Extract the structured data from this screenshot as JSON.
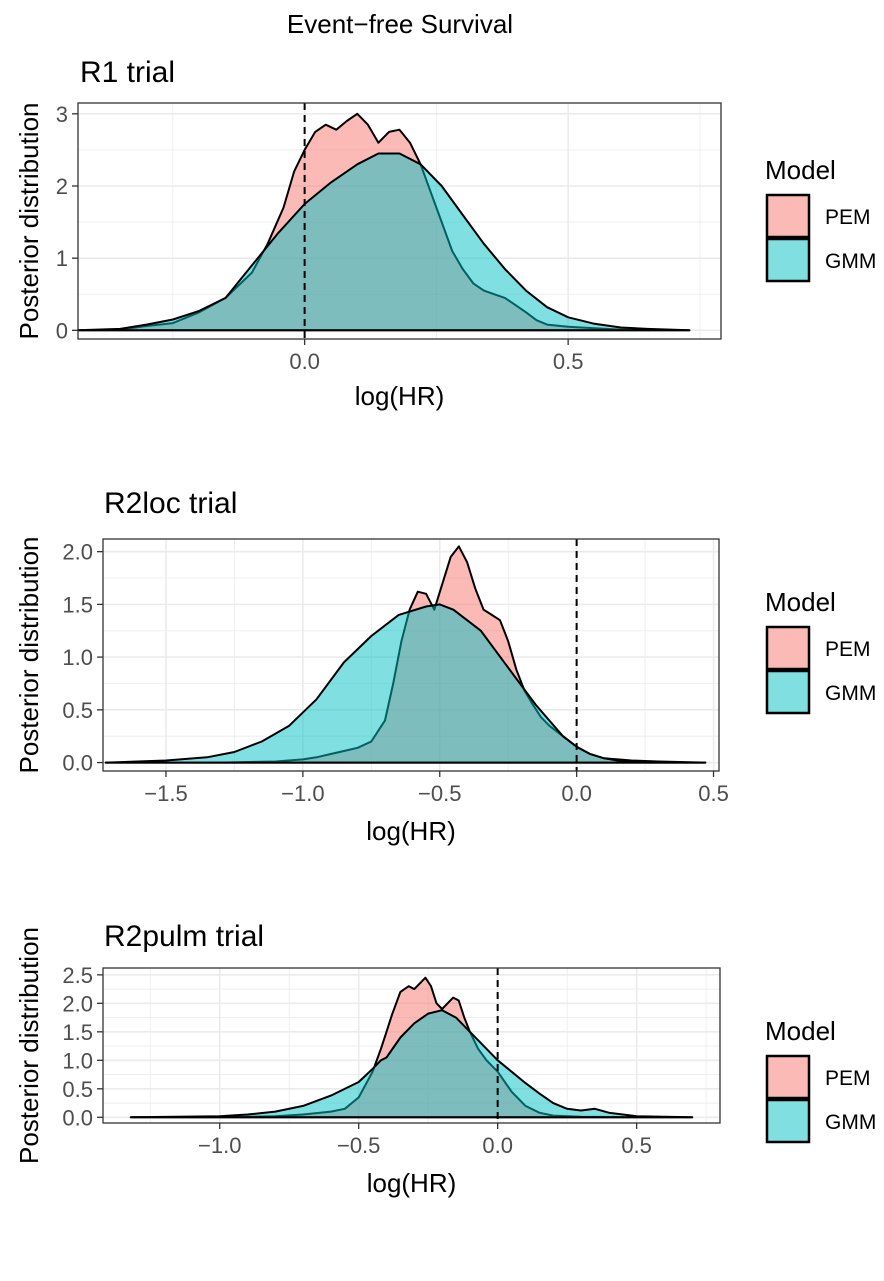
{
  "figure": {
    "title": "Event−free Survival"
  },
  "colors": {
    "pem": "#F8766D",
    "gmm": "#00BFC4",
    "outline": "#000000",
    "grid": "#ebebeb",
    "axis_text": "#4d4d4d"
  },
  "chart_data": [
    {
      "type": "area",
      "title": "R1 trial",
      "xlabel": "log(HR)",
      "ylabel": "Posterior distribution",
      "xlim": [
        -0.43,
        0.79
      ],
      "ylim": [
        -0.12,
        3.15
      ],
      "xticks": [
        0.0,
        0.5
      ],
      "xtick_labels": [
        "0.0",
        "0.5"
      ],
      "yticks": [
        0,
        1,
        2,
        3
      ],
      "ytick_labels": [
        "0",
        "1",
        "2",
        "3"
      ],
      "grid": true,
      "reference_line_x": 0,
      "legend": {
        "title": "Model",
        "position": "right",
        "entries": [
          "PEM",
          "GMM"
        ]
      },
      "series": [
        {
          "name": "PEM",
          "x": [
            -0.43,
            -0.35,
            -0.3,
            -0.25,
            -0.2,
            -0.15,
            -0.1,
            -0.07,
            -0.04,
            -0.02,
            0.0,
            0.02,
            0.04,
            0.06,
            0.08,
            0.1,
            0.12,
            0.14,
            0.16,
            0.18,
            0.2,
            0.22,
            0.24,
            0.26,
            0.28,
            0.3,
            0.32,
            0.34,
            0.36,
            0.38,
            0.4,
            0.42,
            0.44,
            0.46,
            0.5,
            0.55,
            0.6,
            0.65,
            0.73
          ],
          "y": [
            0.0,
            0.01,
            0.06,
            0.1,
            0.25,
            0.45,
            0.8,
            1.2,
            1.7,
            2.2,
            2.5,
            2.75,
            2.85,
            2.78,
            2.9,
            3.0,
            2.85,
            2.6,
            2.75,
            2.78,
            2.6,
            2.3,
            1.9,
            1.5,
            1.1,
            0.85,
            0.65,
            0.55,
            0.5,
            0.45,
            0.35,
            0.25,
            0.14,
            0.08,
            0.05,
            0.03,
            0.01,
            0.01,
            0.0
          ]
        },
        {
          "name": "GMM",
          "x": [
            -0.43,
            -0.35,
            -0.3,
            -0.25,
            -0.2,
            -0.15,
            -0.1,
            -0.05,
            0.0,
            0.05,
            0.1,
            0.14,
            0.18,
            0.22,
            0.26,
            0.3,
            0.34,
            0.38,
            0.42,
            0.46,
            0.5,
            0.55,
            0.6,
            0.65,
            0.73
          ],
          "y": [
            0.0,
            0.02,
            0.08,
            0.15,
            0.27,
            0.45,
            0.9,
            1.35,
            1.75,
            2.05,
            2.3,
            2.45,
            2.45,
            2.3,
            2.0,
            1.6,
            1.2,
            0.85,
            0.55,
            0.32,
            0.18,
            0.09,
            0.04,
            0.02,
            0.0
          ]
        }
      ]
    },
    {
      "type": "area",
      "title": "R2loc trial",
      "xlabel": "log(HR)",
      "ylabel": "Posterior distribution",
      "xlim": [
        -1.73,
        0.52
      ],
      "ylim": [
        -0.08,
        2.12
      ],
      "xticks": [
        -1.5,
        -1.0,
        -0.5,
        0.0,
        0.5
      ],
      "xtick_labels": [
        "−1.5",
        "−1.0",
        "−0.5",
        "0.0",
        "0.5"
      ],
      "yticks": [
        0.0,
        0.5,
        1.0,
        1.5,
        2.0
      ],
      "ytick_labels": [
        "0.0",
        "0.5",
        "1.0",
        "1.5",
        "2.0"
      ],
      "grid": true,
      "reference_line_x": 0,
      "legend": {
        "title": "Model",
        "position": "right",
        "entries": [
          "PEM",
          "GMM"
        ]
      },
      "series": [
        {
          "name": "PEM",
          "x": [
            -1.72,
            -1.3,
            -1.1,
            -1.0,
            -0.95,
            -0.9,
            -0.85,
            -0.8,
            -0.75,
            -0.7,
            -0.67,
            -0.64,
            -0.61,
            -0.58,
            -0.55,
            -0.52,
            -0.49,
            -0.46,
            -0.43,
            -0.4,
            -0.37,
            -0.34,
            -0.31,
            -0.28,
            -0.25,
            -0.22,
            -0.19,
            -0.16,
            -0.13,
            -0.1,
            -0.05,
            0.0,
            0.05,
            0.1,
            0.2,
            0.3,
            0.47
          ],
          "y": [
            0.0,
            0.0,
            0.01,
            0.03,
            0.05,
            0.08,
            0.11,
            0.14,
            0.2,
            0.4,
            0.75,
            1.15,
            1.45,
            1.62,
            1.6,
            1.45,
            1.7,
            1.95,
            2.05,
            1.9,
            1.65,
            1.45,
            1.4,
            1.35,
            1.15,
            0.88,
            0.68,
            0.55,
            0.43,
            0.35,
            0.25,
            0.15,
            0.08,
            0.04,
            0.02,
            0.01,
            0.0
          ]
        },
        {
          "name": "GMM",
          "x": [
            -1.72,
            -1.5,
            -1.35,
            -1.25,
            -1.15,
            -1.05,
            -0.95,
            -0.85,
            -0.75,
            -0.65,
            -0.55,
            -0.5,
            -0.45,
            -0.35,
            -0.25,
            -0.15,
            -0.05,
            0.0,
            0.05,
            0.1,
            0.15,
            0.3,
            0.47
          ],
          "y": [
            0.0,
            0.02,
            0.05,
            0.1,
            0.2,
            0.35,
            0.6,
            0.95,
            1.2,
            1.4,
            1.48,
            1.5,
            1.45,
            1.25,
            0.9,
            0.55,
            0.25,
            0.15,
            0.08,
            0.04,
            0.02,
            0.0,
            0.0
          ]
        }
      ]
    },
    {
      "type": "area",
      "title": "R2pulm trial",
      "xlabel": "log(HR)",
      "ylabel": "Posterior distribution",
      "xlim": [
        -1.42,
        0.8
      ],
      "ylim": [
        -0.1,
        2.62
      ],
      "xticks": [
        -1.0,
        -0.5,
        0.0,
        0.5
      ],
      "xtick_labels": [
        "−1.0",
        "−0.5",
        "0.0",
        "0.5"
      ],
      "yticks": [
        0.0,
        0.5,
        1.0,
        1.5,
        2.0,
        2.5
      ],
      "ytick_labels": [
        "0.0",
        "0.5",
        "1.0",
        "1.5",
        "2.0",
        "2.5"
      ],
      "grid": true,
      "reference_line_x": 0,
      "legend": {
        "title": "Model",
        "position": "right",
        "entries": [
          "PEM",
          "GMM"
        ]
      },
      "series": [
        {
          "name": "PEM",
          "x": [
            -1.32,
            -1.0,
            -0.8,
            -0.7,
            -0.6,
            -0.55,
            -0.5,
            -0.45,
            -0.42,
            -0.4,
            -0.38,
            -0.35,
            -0.32,
            -0.3,
            -0.28,
            -0.26,
            -0.24,
            -0.22,
            -0.2,
            -0.18,
            -0.16,
            -0.14,
            -0.12,
            -0.1,
            -0.07,
            -0.04,
            0.0,
            0.05,
            0.1,
            0.15,
            0.2,
            0.3,
            0.5,
            0.7
          ],
          "y": [
            0.0,
            0.0,
            0.02,
            0.05,
            0.1,
            0.15,
            0.35,
            0.8,
            1.2,
            1.5,
            1.8,
            2.2,
            2.3,
            2.25,
            2.35,
            2.45,
            2.3,
            2.0,
            1.9,
            2.0,
            2.1,
            2.05,
            1.75,
            1.5,
            1.2,
            1.0,
            0.8,
            0.45,
            0.2,
            0.08,
            0.03,
            0.01,
            0.0,
            0.0
          ]
        },
        {
          "name": "GMM",
          "x": [
            -1.32,
            -1.0,
            -0.9,
            -0.8,
            -0.7,
            -0.6,
            -0.5,
            -0.45,
            -0.42,
            -0.4,
            -0.35,
            -0.3,
            -0.25,
            -0.2,
            -0.15,
            -0.1,
            -0.05,
            0.0,
            0.05,
            0.1,
            0.15,
            0.2,
            0.25,
            0.3,
            0.35,
            0.4,
            0.5,
            0.7
          ],
          "y": [
            0.0,
            0.02,
            0.05,
            0.1,
            0.2,
            0.38,
            0.62,
            0.85,
            1.0,
            1.05,
            1.4,
            1.65,
            1.82,
            1.88,
            1.75,
            1.5,
            1.25,
            1.0,
            0.8,
            0.6,
            0.42,
            0.25,
            0.15,
            0.12,
            0.15,
            0.08,
            0.02,
            0.0
          ]
        }
      ]
    }
  ]
}
